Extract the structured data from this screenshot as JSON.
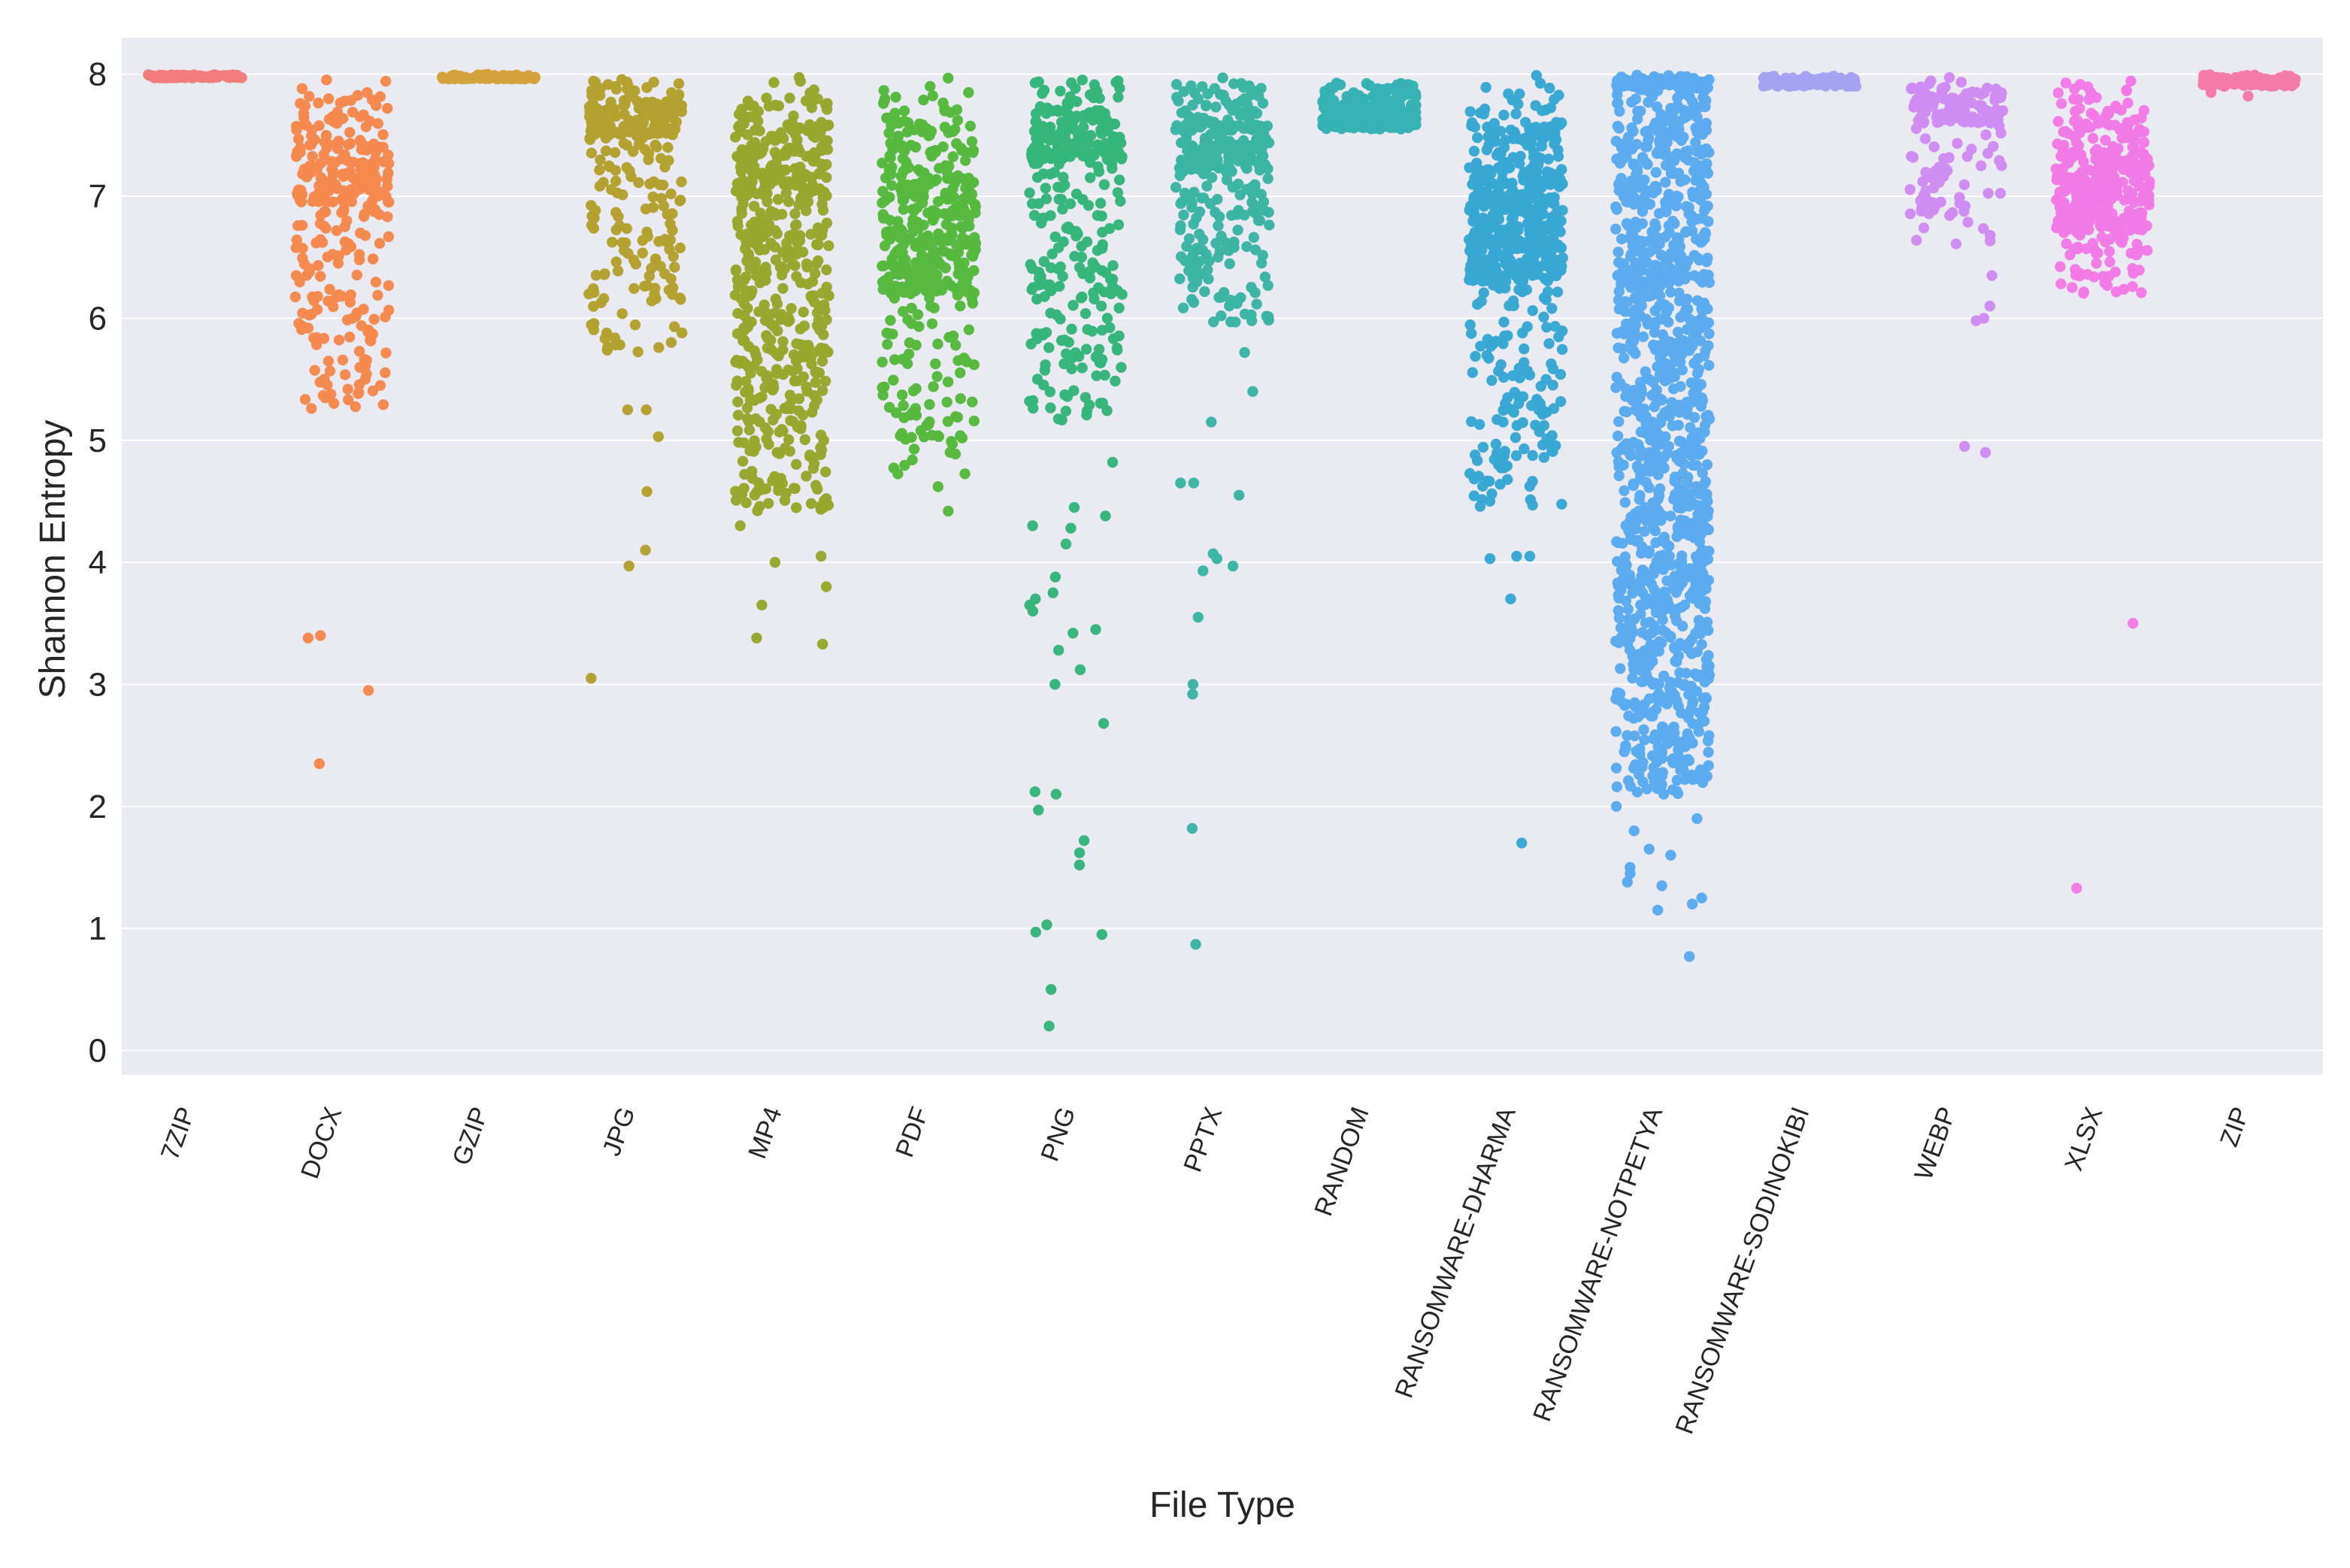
{
  "chart_data": {
    "type": "scatter",
    "subtype": "strip",
    "title": "",
    "xlabel": "File Type",
    "ylabel": "Shannon Entropy",
    "ylim": [
      -0.2,
      8.3
    ],
    "y_ticks": [
      "0",
      "1",
      "2",
      "3",
      "4",
      "5",
      "6",
      "7",
      "8"
    ],
    "grid": true,
    "categories": [
      "7ZIP",
      "DOCX",
      "GZIP",
      "JPG",
      "MP4",
      "PDF",
      "PNG",
      "PPTX",
      "RANDOM",
      "RANSOMWARE-DHARMA",
      "RANSOMWARE-NOTPETYA",
      "RANSOMWARE-SODINOKIBI",
      "WEBP",
      "XLSX",
      "ZIP"
    ],
    "series": [
      {
        "name": "7ZIP",
        "color": "#f07c7c",
        "dense_range": [
          7.97,
          8.0
        ],
        "dense_count": 120,
        "outliers": []
      },
      {
        "name": "DOCX",
        "color": "#f5894e",
        "dense_range": [
          6.95,
          8.0
        ],
        "dense_count": 180,
        "scatter_range": [
          5.25,
          6.95
        ],
        "scatter_count": 130,
        "outliers": [
          3.4,
          3.38,
          2.95,
          2.35
        ]
      },
      {
        "name": "GZIP",
        "color": "#d4a23a",
        "dense_range": [
          7.96,
          8.0
        ],
        "dense_count": 100,
        "outliers": []
      },
      {
        "name": "JPG",
        "color": "#b3a12f",
        "dense_range": [
          7.5,
          8.0
        ],
        "dense_count": 160,
        "scatter_range": [
          5.7,
          7.5
        ],
        "scatter_count": 130,
        "outliers": [
          5.25,
          5.25,
          5.03,
          4.58,
          4.1,
          3.97,
          3.05
        ]
      },
      {
        "name": "MP4",
        "color": "#97a62c",
        "dense_range": [
          7.0,
          8.0
        ],
        "dense_count": 200,
        "scatter_range": [
          4.4,
          7.0
        ],
        "scatter_count": 360,
        "outliers": [
          4.3,
          4.05,
          4.0,
          3.8,
          3.65,
          3.38,
          3.33
        ]
      },
      {
        "name": "PDF",
        "color": "#56b93d",
        "dense_range": [
          6.2,
          8.0
        ],
        "dense_count": 330,
        "scatter_range": [
          4.7,
          6.2
        ],
        "scatter_count": 90,
        "outliers": [
          4.62,
          4.42
        ]
      },
      {
        "name": "PNG",
        "color": "#34b57a",
        "dense_range": [
          7.3,
          8.0
        ],
        "dense_count": 160,
        "scatter_range": [
          5.15,
          7.3
        ],
        "scatter_count": 170,
        "outliers": [
          4.82,
          4.45,
          4.38,
          4.3,
          4.28,
          4.15,
          3.88,
          3.75,
          3.7,
          3.65,
          3.6,
          3.45,
          3.42,
          3.28,
          3.12,
          3.0,
          2.68,
          2.12,
          2.1,
          1.97,
          1.72,
          1.62,
          1.52,
          1.03,
          0.97,
          0.95,
          0.5,
          0.2
        ]
      },
      {
        "name": "PPTX",
        "color": "#3bb5a3",
        "dense_range": [
          7.2,
          8.0
        ],
        "dense_count": 180,
        "scatter_range": [
          5.95,
          7.2
        ],
        "scatter_count": 120,
        "outliers": [
          5.72,
          5.4,
          5.15,
          4.65,
          4.65,
          4.55,
          4.07,
          4.03,
          3.97,
          3.93,
          3.55,
          3.0,
          2.92,
          1.82,
          0.87
        ]
      },
      {
        "name": "RANDOM",
        "color": "#36b1b5",
        "dense_range": [
          7.55,
          7.97
        ],
        "dense_count": 220,
        "outliers": []
      },
      {
        "name": "RANSOMWARE-DHARMA",
        "color": "#37a7d3",
        "dense_range": [
          6.3,
          8.0
        ],
        "dense_count": 450,
        "scatter_range": [
          4.45,
          6.3
        ],
        "scatter_count": 130,
        "outliers": [
          4.05,
          4.05,
          4.03,
          3.7,
          1.7
        ]
      },
      {
        "name": "RANSOMWARE-NOTPETYA",
        "color": "#5aaaf0",
        "dense_range": [
          7.9,
          8.0
        ],
        "dense_count": 90,
        "scatter_range": [
          2.1,
          7.9
        ],
        "scatter_count": 1200,
        "outliers": [
          2.0,
          1.9,
          1.8,
          1.65,
          1.6,
          1.5,
          1.45,
          1.38,
          1.35,
          1.25,
          1.2,
          1.15,
          0.77
        ]
      },
      {
        "name": "RANSOMWARE-SODINOKIBI",
        "color": "#a6a2f3",
        "dense_range": [
          7.9,
          8.0
        ],
        "dense_count": 120,
        "outliers": []
      },
      {
        "name": "WEBP",
        "color": "#cf8cf2",
        "dense_range": [
          7.6,
          8.0
        ],
        "dense_count": 120,
        "scatter_range": [
          6.5,
          7.6
        ],
        "scatter_count": 60,
        "outliers": [
          6.35,
          6.1,
          6.0,
          5.98,
          4.95,
          4.9
        ]
      },
      {
        "name": "XLSX",
        "color": "#f27ae6",
        "dense_range": [
          6.7,
          8.0
        ],
        "dense_count": 340,
        "scatter_range": [
          6.2,
          6.7
        ],
        "scatter_count": 50,
        "outliers": [
          3.5,
          1.33
        ]
      },
      {
        "name": "ZIP",
        "color": "#f47aa8",
        "dense_range": [
          7.9,
          8.0
        ],
        "dense_count": 120,
        "outliers": [
          7.85,
          7.82
        ]
      }
    ]
  }
}
